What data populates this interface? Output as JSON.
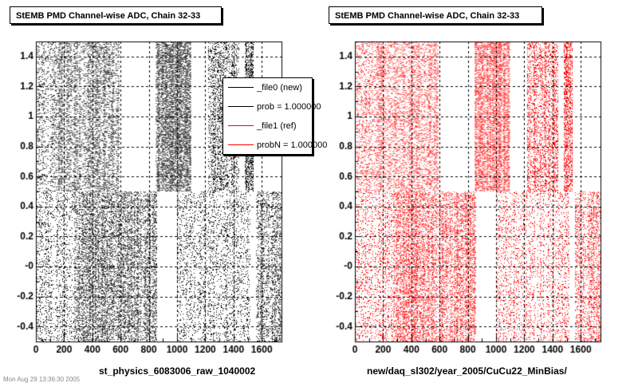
{
  "colors": {
    "series0": "#000000",
    "series1": "#ff0000",
    "grid": "#000000"
  },
  "footer_text": "Mon Aug 29 13:36:30 2005",
  "legend": {
    "entries": [
      {
        "label": "_file0 (new)",
        "color": "#000000"
      },
      {
        "label": "prob = 1.000000",
        "color": "#000000"
      },
      {
        "label": "_file1 (ref)",
        "color": "#ff0000"
      },
      {
        "label": "probN = 1.000000",
        "color": "#ff0000"
      }
    ]
  },
  "chart_data": [
    {
      "type": "scatter",
      "title": "StEMB PMD Channel-wise ADC, Chain 32-33",
      "xlabel": "st_physics_6083006_raw_1040002",
      "ylabel": "",
      "xlim": [
        0,
        1740
      ],
      "ylim": [
        -0.5,
        1.5
      ],
      "grid": true,
      "legend": "top-right",
      "color": "#000000",
      "x_ticks": [
        "0",
        "200",
        "400",
        "600",
        "800",
        "1000",
        "1200",
        "1400",
        "1600"
      ],
      "y_ticks": [
        "-0.4",
        "-0.2",
        "-0",
        "0.2",
        "0.4",
        "0.6",
        "0.8",
        "1",
        "1.2",
        "1.4"
      ],
      "series": [
        {
          "values": [
            {
              "x_range": [
                10,
                150
              ],
              "y_range": [
                0.5,
                1.5
              ],
              "density": 0.35
            },
            {
              "x_range": [
                150,
                590
              ],
              "y_range": [
                0.5,
                1.5
              ],
              "density": 0.55
            },
            {
              "x_range": [
                850,
                1100
              ],
              "y_range": [
                0.5,
                1.5
              ],
              "density": 0.97
            },
            {
              "x_range": [
                1220,
                1440
              ],
              "y_range": [
                0.5,
                1.5
              ],
              "density": 0.6
            },
            {
              "x_range": [
                1480,
                1540
              ],
              "y_range": [
                0.5,
                1.5
              ],
              "density": 0.85
            },
            {
              "x_range": [
                0,
                270
              ],
              "y_range": [
                -0.5,
                0.5
              ],
              "density": 0.3
            },
            {
              "x_range": [
                270,
                860
              ],
              "y_range": [
                -0.5,
                0.5
              ],
              "density": 0.62
            },
            {
              "x_range": [
                1000,
                1520
              ],
              "y_range": [
                -0.5,
                0.5
              ],
              "density": 0.28
            },
            {
              "x_range": [
                1560,
                1740
              ],
              "y_range": [
                -0.5,
                0.5
              ],
              "density": 0.55
            }
          ]
        }
      ]
    },
    {
      "type": "scatter",
      "title": "StEMB PMD Channel-wise ADC, Chain 32-33",
      "xlabel": "new/daq_sl302/year_2005/CuCu22_MinBias/",
      "ylabel": "",
      "xlim": [
        0,
        1740
      ],
      "ylim": [
        -0.5,
        1.5
      ],
      "grid": true,
      "color": "#ff0000",
      "x_ticks": [
        "0",
        "200",
        "400",
        "600",
        "800",
        "1000",
        "1200",
        "1400",
        "1600"
      ],
      "y_ticks": [
        "-0.4",
        "-0.2",
        "-0",
        "0.2",
        "0.4",
        "0.6",
        "0.8",
        "1",
        "1.2",
        "1.4"
      ],
      "series": [
        {
          "values": [
            {
              "x_range": [
                10,
                150
              ],
              "y_range": [
                0.5,
                1.5
              ],
              "density": 0.35
            },
            {
              "x_range": [
                150,
                590
              ],
              "y_range": [
                0.5,
                1.5
              ],
              "density": 0.55
            },
            {
              "x_range": [
                850,
                1100
              ],
              "y_range": [
                0.5,
                1.5
              ],
              "density": 0.97
            },
            {
              "x_range": [
                1220,
                1440
              ],
              "y_range": [
                0.5,
                1.5
              ],
              "density": 0.6
            },
            {
              "x_range": [
                1480,
                1540
              ],
              "y_range": [
                0.5,
                1.5
              ],
              "density": 0.85
            },
            {
              "x_range": [
                0,
                270
              ],
              "y_range": [
                -0.5,
                0.5
              ],
              "density": 0.3
            },
            {
              "x_range": [
                270,
                860
              ],
              "y_range": [
                -0.5,
                0.5
              ],
              "density": 0.62
            },
            {
              "x_range": [
                1000,
                1520
              ],
              "y_range": [
                -0.5,
                0.5
              ],
              "density": 0.28
            },
            {
              "x_range": [
                1560,
                1740
              ],
              "y_range": [
                -0.5,
                0.5
              ],
              "density": 0.55
            }
          ]
        }
      ]
    }
  ]
}
